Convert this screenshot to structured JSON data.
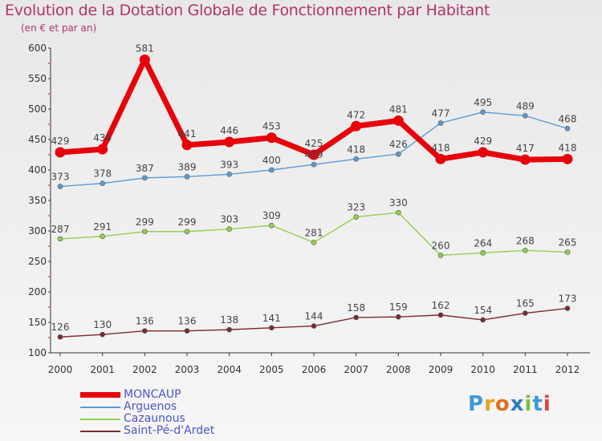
{
  "title": "Evolution de la Dotation Globale de Fonctionnement par Habitant",
  "subtitle": "(en € et par an)",
  "logo": "Proxiti",
  "chart_data": {
    "type": "line",
    "title": "Evolution de la Dotation Globale de Fonctionnement par Habitant",
    "subtitle": "(en € et par an)",
    "x": [
      "2000",
      "2001",
      "2002",
      "2003",
      "2004",
      "2005",
      "2006",
      "2007",
      "2008",
      "2009",
      "2010",
      "2011",
      "2012"
    ],
    "yticks": [
      100,
      150,
      200,
      250,
      300,
      350,
      400,
      450,
      500,
      550,
      600
    ],
    "ylim": [
      100,
      600
    ],
    "grid": false,
    "legend_position": "bottom-left",
    "series": [
      {
        "name": "MONCAUP",
        "color": "#e8000a",
        "values": [
          429,
          434,
          581,
          441,
          446,
          453,
          425,
          472,
          481,
          418,
          429,
          417,
          418
        ]
      },
      {
        "name": "Arguenos",
        "color": "#5b9bd5",
        "values": [
          373,
          378,
          387,
          389,
          393,
          400,
          409,
          418,
          426,
          477,
          495,
          489,
          468
        ]
      },
      {
        "name": "Cazaunous",
        "color": "#92d050",
        "values": [
          287,
          291,
          299,
          299,
          303,
          309,
          281,
          323,
          330,
          260,
          264,
          268,
          265
        ]
      },
      {
        "name": "Saint-Pé-d'Ardet",
        "color": "#7b2c2c",
        "values": [
          126,
          130,
          136,
          136,
          138,
          141,
          144,
          158,
          159,
          162,
          154,
          165,
          173
        ]
      }
    ]
  }
}
